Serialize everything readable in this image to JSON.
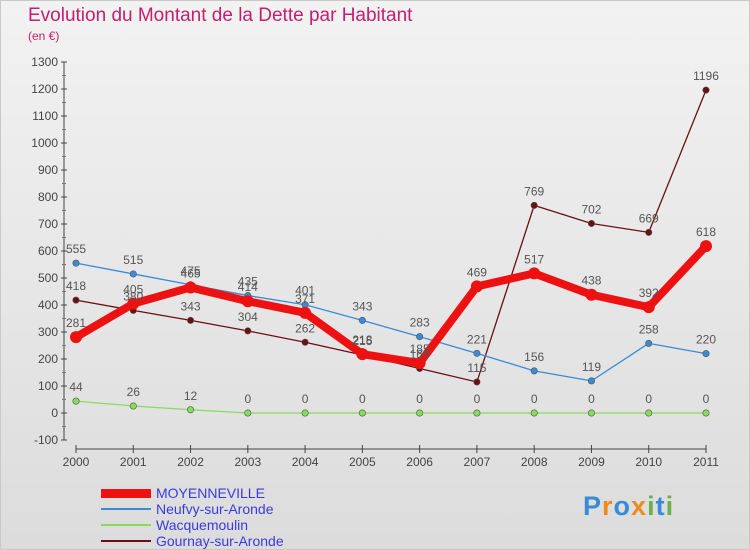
{
  "title": "Evolution du Montant de la Dette par Habitant",
  "subtitle": "(en €)",
  "logo": "Proxiti",
  "chart_data": {
    "type": "line",
    "title": "Evolution du Montant de la Dette par Habitant",
    "ylabel": "(en €)",
    "xlabel": "",
    "x": [
      "2000",
      "2001",
      "2002",
      "2003",
      "2004",
      "2005",
      "2006",
      "2007",
      "2008",
      "2009",
      "2010",
      "2011"
    ],
    "ylim": [
      -100,
      1300
    ],
    "yticks": [
      -100,
      0,
      100,
      200,
      300,
      400,
      500,
      600,
      700,
      800,
      900,
      1000,
      1100,
      1200,
      1300
    ],
    "grid": false,
    "legend_position": "bottom-left",
    "series": [
      {
        "name": "MOYENNEVILLE",
        "color": "#ee1111",
        "values": [
          281,
          405,
          465,
          414,
          371,
          218,
          185,
          469,
          517,
          438,
          392,
          618
        ]
      },
      {
        "name": "Neufvy-sur-Aronde",
        "color": "#3a8bd6",
        "values": [
          555,
          515,
          475,
          435,
          401,
          343,
          283,
          221,
          156,
          119,
          258,
          220
        ]
      },
      {
        "name": "Wacquemoulin",
        "color": "#86dd5a",
        "values": [
          44,
          26,
          12,
          0,
          0,
          0,
          0,
          0,
          0,
          0,
          0,
          0
        ]
      },
      {
        "name": "Gournay-sur-Aronde",
        "color": "#6b0f14",
        "values": [
          418,
          380,
          343,
          304,
          262,
          215,
          165,
          115,
          769,
          702,
          669,
          1196
        ]
      }
    ]
  }
}
